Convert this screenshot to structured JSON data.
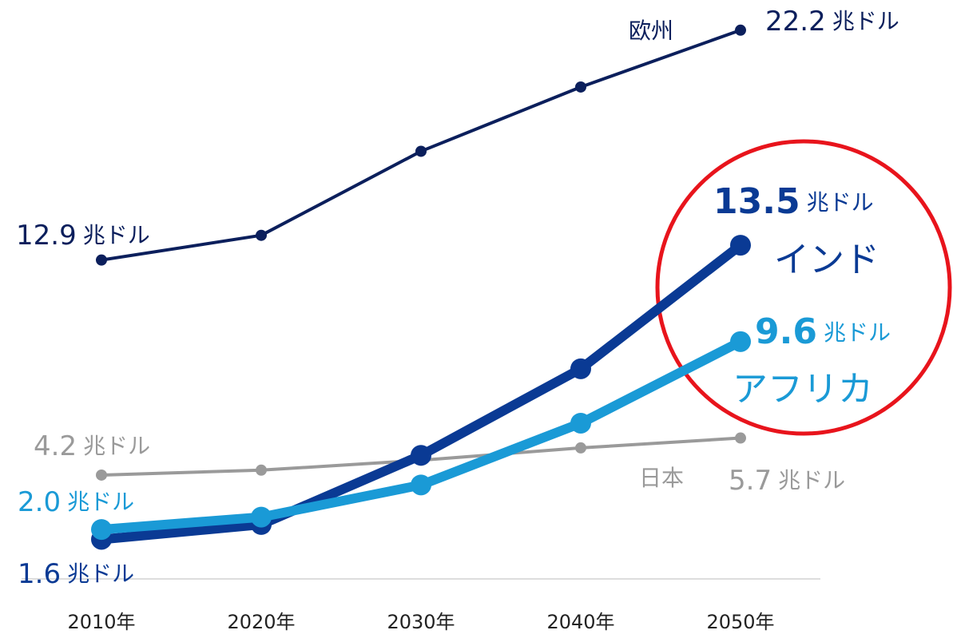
{
  "chart_data": {
    "type": "line",
    "unit": "兆ドル",
    "categories": [
      "2010年",
      "2020年",
      "2030年",
      "2040年",
      "2050年"
    ],
    "ylim": [
      0,
      23
    ],
    "series": [
      {
        "name": "欧州",
        "color": "#0b1f5c",
        "values": [
          12.9,
          13.9,
          17.3,
          19.9,
          22.2
        ],
        "value_labels": [
          "12.9",
          null,
          null,
          null,
          "22.2"
        ]
      },
      {
        "name": "日本",
        "color": "#9a9a9a",
        "values": [
          4.2,
          4.4,
          4.8,
          5.3,
          5.7
        ],
        "value_labels": [
          "4.2",
          null,
          null,
          null,
          "5.7"
        ]
      },
      {
        "name": "インド",
        "color": "#0a3a94",
        "values": [
          1.6,
          2.2,
          5.0,
          8.5,
          13.5
        ],
        "value_labels": [
          "1.6",
          null,
          null,
          null,
          "13.5"
        ]
      },
      {
        "name": "アフリカ",
        "color": "#1a9ad6",
        "values": [
          2.0,
          2.5,
          3.8,
          6.3,
          9.6
        ],
        "value_labels": [
          "2.0",
          null,
          null,
          null,
          "9.6"
        ]
      }
    ]
  }
}
